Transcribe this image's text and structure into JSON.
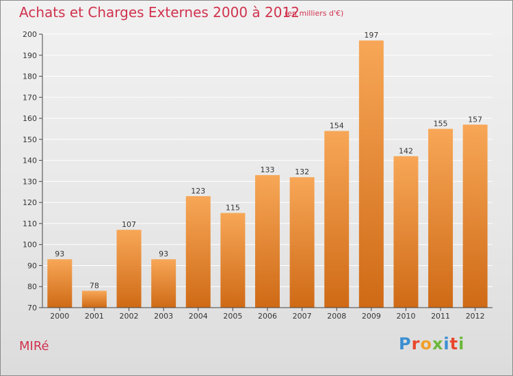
{
  "header": {
    "title": "Achats et Charges Externes 2000 à 2012",
    "subtitle": "(en milliers d'€)"
  },
  "footer": {
    "place": "MIRé",
    "brand": "Proxiti",
    "brand_colors": [
      "#3b8fd1",
      "#e8462b",
      "#f0a02a",
      "#6bb83a",
      "#3b8fd1",
      "#e8462b",
      "#6bb83a"
    ]
  },
  "colors": {
    "title": "#d0324d",
    "bar_top": "#f7a757",
    "bar_bottom": "#cf6a16",
    "axis": "#444444",
    "grid": "#ffffff"
  },
  "chart_data": {
    "type": "bar",
    "categories": [
      "2000",
      "2001",
      "2002",
      "2003",
      "2004",
      "2005",
      "2006",
      "2007",
      "2008",
      "2009",
      "2010",
      "2011",
      "2012"
    ],
    "values": [
      93,
      78,
      107,
      93,
      123,
      115,
      133,
      132,
      154,
      197,
      142,
      155,
      157
    ],
    "ylim": [
      70,
      200
    ],
    "yticks": [
      70,
      80,
      90,
      100,
      110,
      120,
      130,
      140,
      150,
      160,
      170,
      180,
      190,
      200
    ],
    "grid": true,
    "data_labels": true
  }
}
